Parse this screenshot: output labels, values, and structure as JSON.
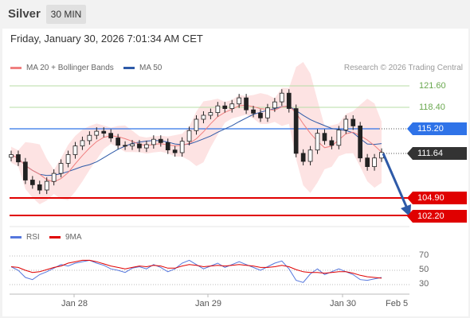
{
  "header": {
    "symbol": "Silver",
    "timeframe": "30 MIN",
    "datetime": "Friday, January 30, 2026 7:01:34 AM CET",
    "credit": "Research © 2026 Trading Central"
  },
  "legend": {
    "ma20": "MA 20 + Bollinger Bands",
    "ma50": "MA 50",
    "rsi": "RSI",
    "rsi_ma": "9MA"
  },
  "colors": {
    "ma20": "#f08080",
    "ma50": "#2e5aa8",
    "resistance": "#8fc97a",
    "pivot": "#2f73e8",
    "support": "#e00000",
    "last": "#333333",
    "bollinger_fill": "#fde3e3",
    "arrow": "#2e5aa8"
  },
  "levels": {
    "r2": "121.60",
    "r1": "118.40",
    "pivot": "115.20",
    "last": "111.64",
    "s1": "104.90",
    "s2": "102.20"
  },
  "rsi_ticks": [
    "70",
    "50",
    "30"
  ],
  "dates": [
    "Jan 28",
    "Jan 29",
    "Jan 30",
    "Feb 5"
  ],
  "chart_data": [
    {
      "type": "candlestick",
      "title": "",
      "x_labels": [
        "Jan 28",
        "Jan 29",
        "Jan 30",
        "Feb 5"
      ],
      "price_levels": {
        "resistance": [
          121.6,
          118.4
        ],
        "pivot": 115.2,
        "last": 111.64,
        "support": [
          104.9,
          102.2
        ]
      },
      "close_path": [
        111.3,
        110.2,
        107.5,
        106.8,
        106.0,
        107.3,
        108.5,
        110.0,
        111.3,
        112.6,
        113.4,
        114.2,
        114.8,
        114.5,
        113.8,
        112.7,
        112.6,
        112.9,
        112.3,
        112.8,
        113.6,
        113.1,
        112.0,
        111.6,
        113.3,
        114.9,
        116.6,
        117.2,
        117.6,
        118.6,
        118.2,
        118.9,
        119.8,
        118.0,
        117.5,
        116.8,
        118.3,
        119.2,
        120.5,
        118.2,
        111.5,
        110.3,
        112.0,
        114.5,
        113.4,
        112.7,
        115.0,
        116.6,
        115.6,
        110.8,
        109.5,
        110.8,
        111.64
      ],
      "projection": {
        "from": 111.64,
        "to": 102.2,
        "direction": "down"
      },
      "series": [
        {
          "name": "MA 20 + Bollinger Bands",
          "role": "ma20"
        },
        {
          "name": "MA 50",
          "role": "ma50"
        }
      ]
    },
    {
      "type": "line",
      "title": "",
      "ylim": [
        20,
        80
      ],
      "y_ticks": [
        70,
        50,
        30
      ],
      "series": [
        {
          "name": "RSI",
          "values": [
            55,
            50,
            40,
            37,
            44,
            48,
            53,
            58,
            56,
            60,
            62,
            64,
            60,
            57,
            52,
            50,
            47,
            53,
            55,
            52,
            58,
            54,
            48,
            52,
            60,
            64,
            58,
            52,
            56,
            60,
            54,
            58,
            62,
            58,
            54,
            50,
            55,
            60,
            63,
            52,
            36,
            33,
            45,
            52,
            44,
            48,
            52,
            48,
            44,
            37,
            36,
            38,
            40
          ]
        },
        {
          "name": "9MA",
          "values": [
            55,
            54,
            50,
            47,
            48,
            51,
            54,
            56,
            60,
            62,
            64,
            64,
            62,
            59,
            56,
            54,
            52,
            54,
            56,
            55,
            57,
            56,
            53,
            53,
            56,
            58,
            57,
            55,
            56,
            57,
            56,
            57,
            58,
            57,
            56,
            54,
            54,
            55,
            57,
            55,
            51,
            48,
            47,
            47,
            46,
            47,
            48,
            48,
            46,
            43,
            41,
            40,
            39
          ]
        }
      ]
    }
  ]
}
